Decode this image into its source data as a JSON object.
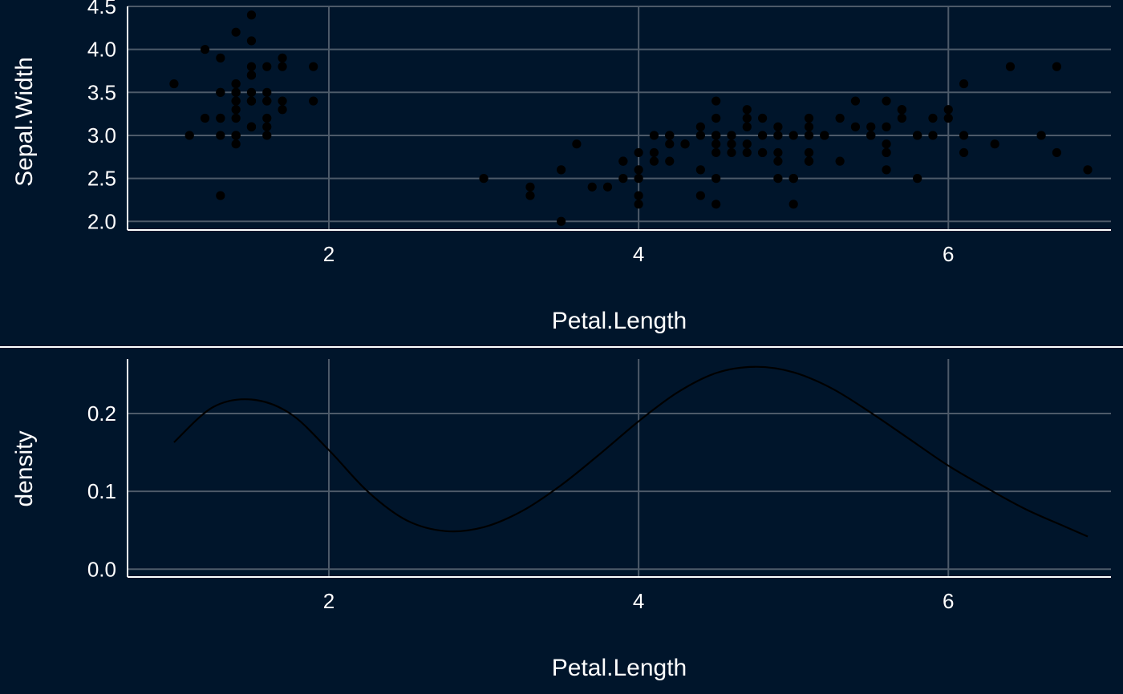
{
  "chart_data": [
    {
      "type": "scatter",
      "title": "",
      "xlabel": "Petal.Length",
      "ylabel": "Sepal.Width",
      "xlim": [
        0.7,
        7.05
      ],
      "ylim": [
        1.9,
        4.5
      ],
      "x_ticks": [
        "2",
        "4",
        "6"
      ],
      "y_ticks": [
        "2.0",
        "2.5",
        "3.0",
        "3.5",
        "4.0",
        "4.5"
      ],
      "grid": true,
      "point_color": "#000000",
      "points": [
        [
          1.4,
          3.5
        ],
        [
          1.4,
          3.0
        ],
        [
          1.3,
          3.2
        ],
        [
          1.5,
          3.1
        ],
        [
          1.4,
          3.6
        ],
        [
          1.7,
          3.9
        ],
        [
          1.4,
          3.4
        ],
        [
          1.5,
          3.4
        ],
        [
          1.4,
          2.9
        ],
        [
          1.5,
          3.1
        ],
        [
          1.5,
          3.7
        ],
        [
          1.6,
          3.4
        ],
        [
          1.4,
          3.0
        ],
        [
          1.1,
          3.0
        ],
        [
          1.2,
          4.0
        ],
        [
          1.5,
          4.4
        ],
        [
          1.3,
          3.9
        ],
        [
          1.4,
          3.5
        ],
        [
          1.7,
          3.8
        ],
        [
          1.5,
          3.8
        ],
        [
          1.7,
          3.4
        ],
        [
          1.5,
          3.7
        ],
        [
          1.0,
          3.6
        ],
        [
          1.7,
          3.3
        ],
        [
          1.9,
          3.4
        ],
        [
          1.6,
          3.0
        ],
        [
          1.6,
          3.4
        ],
        [
          1.5,
          3.5
        ],
        [
          1.4,
          3.4
        ],
        [
          1.6,
          3.2
        ],
        [
          1.6,
          3.1
        ],
        [
          1.5,
          3.4
        ],
        [
          1.5,
          4.1
        ],
        [
          1.4,
          4.2
        ],
        [
          1.5,
          3.1
        ],
        [
          1.2,
          3.2
        ],
        [
          1.3,
          3.5
        ],
        [
          1.4,
          3.6
        ],
        [
          1.3,
          3.0
        ],
        [
          1.5,
          3.4
        ],
        [
          1.3,
          3.5
        ],
        [
          1.3,
          2.3
        ],
        [
          1.3,
          3.2
        ],
        [
          1.6,
          3.5
        ],
        [
          1.9,
          3.8
        ],
        [
          1.4,
          3.0
        ],
        [
          1.6,
          3.8
        ],
        [
          1.4,
          3.2
        ],
        [
          1.5,
          3.7
        ],
        [
          1.4,
          3.3
        ],
        [
          4.7,
          3.2
        ],
        [
          4.5,
          3.2
        ],
        [
          4.9,
          3.1
        ],
        [
          4.0,
          2.3
        ],
        [
          4.6,
          2.8
        ],
        [
          4.5,
          2.8
        ],
        [
          4.7,
          3.3
        ],
        [
          3.3,
          2.4
        ],
        [
          4.6,
          2.9
        ],
        [
          3.9,
          2.7
        ],
        [
          3.5,
          2.0
        ],
        [
          4.2,
          3.0
        ],
        [
          4.0,
          2.2
        ],
        [
          4.7,
          2.9
        ],
        [
          3.6,
          2.9
        ],
        [
          4.4,
          3.1
        ],
        [
          4.5,
          3.0
        ],
        [
          4.1,
          2.7
        ],
        [
          4.5,
          2.2
        ],
        [
          3.9,
          2.5
        ],
        [
          4.8,
          3.2
        ],
        [
          4.0,
          2.8
        ],
        [
          4.9,
          2.5
        ],
        [
          4.7,
          2.8
        ],
        [
          4.3,
          2.9
        ],
        [
          4.4,
          3.0
        ],
        [
          4.8,
          2.8
        ],
        [
          5.0,
          3.0
        ],
        [
          4.5,
          2.9
        ],
        [
          3.5,
          2.6
        ],
        [
          3.8,
          2.4
        ],
        [
          3.7,
          2.4
        ],
        [
          3.9,
          2.7
        ],
        [
          5.1,
          2.7
        ],
        [
          4.5,
          3.0
        ],
        [
          4.5,
          3.4
        ],
        [
          4.7,
          3.1
        ],
        [
          4.4,
          2.3
        ],
        [
          4.1,
          3.0
        ],
        [
          4.0,
          2.5
        ],
        [
          4.4,
          2.6
        ],
        [
          4.6,
          3.0
        ],
        [
          4.0,
          2.6
        ],
        [
          3.3,
          2.3
        ],
        [
          4.2,
          2.7
        ],
        [
          4.2,
          3.0
        ],
        [
          4.2,
          2.9
        ],
        [
          4.3,
          2.9
        ],
        [
          3.0,
          2.5
        ],
        [
          4.1,
          2.8
        ],
        [
          6.0,
          3.3
        ],
        [
          5.1,
          2.7
        ],
        [
          5.9,
          3.0
        ],
        [
          5.6,
          2.9
        ],
        [
          5.8,
          3.0
        ],
        [
          6.6,
          3.0
        ],
        [
          4.5,
          2.5
        ],
        [
          6.3,
          2.9
        ],
        [
          5.8,
          2.5
        ],
        [
          6.1,
          3.6
        ],
        [
          5.1,
          3.2
        ],
        [
          5.3,
          2.7
        ],
        [
          5.5,
          3.0
        ],
        [
          5.0,
          2.5
        ],
        [
          5.1,
          2.8
        ],
        [
          5.3,
          3.2
        ],
        [
          5.5,
          3.0
        ],
        [
          6.7,
          3.8
        ],
        [
          6.9,
          2.6
        ],
        [
          5.0,
          2.2
        ],
        [
          5.7,
          3.2
        ],
        [
          4.9,
          2.8
        ],
        [
          6.7,
          2.8
        ],
        [
          4.9,
          2.7
        ],
        [
          5.7,
          3.3
        ],
        [
          6.0,
          3.2
        ],
        [
          4.8,
          2.8
        ],
        [
          4.9,
          3.0
        ],
        [
          5.6,
          2.8
        ],
        [
          5.8,
          3.0
        ],
        [
          6.1,
          2.8
        ],
        [
          6.4,
          3.8
        ],
        [
          5.6,
          2.8
        ],
        [
          5.1,
          2.8
        ],
        [
          5.6,
          2.6
        ],
        [
          6.1,
          3.0
        ],
        [
          5.6,
          3.4
        ],
        [
          5.5,
          3.1
        ],
        [
          4.8,
          3.0
        ],
        [
          5.4,
          3.1
        ],
        [
          5.6,
          3.1
        ],
        [
          5.1,
          3.1
        ],
        [
          5.1,
          2.7
        ],
        [
          5.9,
          3.2
        ],
        [
          5.7,
          3.3
        ],
        [
          5.2,
          3.0
        ],
        [
          5.0,
          2.5
        ],
        [
          5.2,
          3.0
        ],
        [
          5.4,
          3.4
        ],
        [
          5.1,
          3.0
        ]
      ]
    },
    {
      "type": "line",
      "title": "",
      "xlabel": "Petal.Length",
      "ylabel": "density",
      "xlim": [
        0.7,
        7.05
      ],
      "ylim": [
        -0.01,
        0.27
      ],
      "x_ticks": [
        "2",
        "4",
        "6"
      ],
      "y_ticks": [
        "0.0",
        "0.1",
        "0.2"
      ],
      "grid": true,
      "line_color": "#000000",
      "series": [
        {
          "x": [
            1.0,
            1.25,
            1.5,
            1.75,
            2.0,
            2.25,
            2.5,
            2.75,
            3.0,
            3.25,
            3.5,
            3.75,
            4.0,
            4.25,
            4.5,
            4.75,
            5.0,
            5.25,
            5.5,
            5.75,
            6.0,
            6.25,
            6.5,
            6.75,
            6.9
          ],
          "values": [
            0.163,
            0.208,
            0.218,
            0.2,
            0.153,
            0.1,
            0.063,
            0.049,
            0.054,
            0.075,
            0.108,
            0.148,
            0.19,
            0.227,
            0.252,
            0.26,
            0.253,
            0.232,
            0.201,
            0.167,
            0.133,
            0.104,
            0.077,
            0.055,
            0.042
          ]
        }
      ]
    }
  ]
}
